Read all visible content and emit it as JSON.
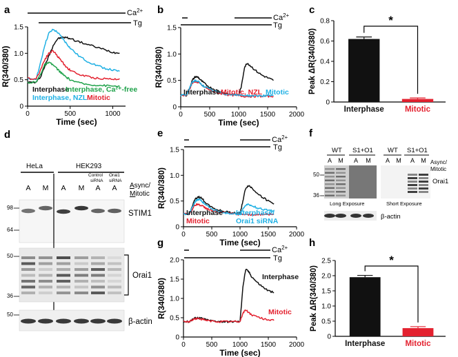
{
  "panel_labels": {
    "a": "a",
    "b": "b",
    "c": "c",
    "d": "d",
    "e": "e",
    "f": "f",
    "g": "g",
    "h": "h"
  },
  "annotations": {
    "ca": "Ca",
    "ca_sup": "2+",
    "tg": "Tg",
    "star": "*"
  },
  "colors": {
    "black": "#111111",
    "cyan": "#1fb0e4",
    "red": "#e3212f",
    "green": "#1fa24a",
    "gray": "#7f7f7f"
  },
  "chart_data": [
    {
      "id": "a",
      "type": "line",
      "title": "",
      "xlabel": "Time (sec)",
      "ylabel": "R(340/380)",
      "xlim": [
        0,
        1150
      ],
      "ylim": [
        0,
        1.5
      ],
      "xticks": [
        0,
        500,
        1000
      ],
      "yticks": [
        0,
        0.5,
        1.0,
        1.5
      ],
      "ytick_labels": [
        "0",
        "0.5",
        "1.0",
        "1.5"
      ],
      "series": [
        {
          "name": "Interphase",
          "color": "black",
          "x": [
            0,
            100,
            150,
            200,
            250,
            300,
            350,
            400,
            450,
            500,
            600,
            700,
            800,
            900,
            1000,
            1080
          ],
          "y": [
            0.45,
            0.45,
            0.55,
            0.75,
            0.95,
            1.15,
            1.27,
            1.3,
            1.3,
            1.28,
            1.22,
            1.17,
            1.12,
            1.07,
            1.02,
            1.0
          ]
        },
        {
          "name": "Interphase, NZL",
          "color": "cyan",
          "x": [
            0,
            100,
            150,
            200,
            250,
            300,
            350,
            400,
            450,
            500,
            600,
            700,
            800,
            900,
            1000,
            1080
          ],
          "y": [
            0.5,
            0.52,
            0.8,
            1.15,
            1.38,
            1.45,
            1.4,
            1.3,
            1.2,
            1.1,
            0.95,
            0.85,
            0.78,
            0.72,
            0.68,
            0.66
          ]
        },
        {
          "name": "Mitotic",
          "color": "red",
          "x": [
            0,
            100,
            150,
            200,
            250,
            300,
            350,
            400,
            450,
            500,
            600,
            700,
            800,
            900,
            1000,
            1080
          ],
          "y": [
            0.52,
            0.52,
            0.68,
            0.88,
            1.0,
            1.05,
            0.95,
            0.85,
            0.75,
            0.68,
            0.6,
            0.56,
            0.53,
            0.52,
            0.51,
            0.52
          ]
        },
        {
          "name": "Interphase, Ca²⁺-free",
          "color": "green",
          "x": [
            0,
            100,
            150,
            200,
            250,
            300,
            350,
            400,
            450,
            500,
            600,
            700,
            800,
            900,
            1000,
            1080
          ],
          "y": [
            0.45,
            0.45,
            0.6,
            0.78,
            0.82,
            0.78,
            0.7,
            0.62,
            0.55,
            0.5,
            0.44,
            0.41,
            0.4,
            0.39,
            0.38,
            0.38
          ]
        }
      ],
      "legend": [
        "Interphase",
        "Interphase, NZL",
        "Interphase, Ca²⁺-free",
        "Mitotic"
      ]
    },
    {
      "id": "b",
      "type": "line",
      "title": "",
      "xlabel": "Time (sec)",
      "ylabel": "R(340/380)",
      "xlim": [
        0,
        2000
      ],
      "ylim": [
        0,
        1.5
      ],
      "xticks": [
        0,
        500,
        1000,
        1500,
        2000
      ],
      "yticks": [
        0,
        0.5,
        1.0,
        1.5
      ],
      "ytick_labels": [
        "0",
        "0.5",
        "1.0",
        "1.5"
      ],
      "series": [
        {
          "name": "Interphase",
          "color": "black",
          "x": [
            0,
            100,
            150,
            200,
            250,
            300,
            350,
            400,
            500,
            600,
            700,
            800,
            900,
            1000,
            1050,
            1100,
            1150,
            1200,
            1300,
            1400,
            1500,
            1600
          ],
          "y": [
            0.22,
            0.22,
            0.35,
            0.5,
            0.57,
            0.56,
            0.5,
            0.45,
            0.37,
            0.32,
            0.28,
            0.25,
            0.23,
            0.22,
            0.4,
            0.75,
            0.83,
            0.78,
            0.68,
            0.6,
            0.55,
            0.5
          ]
        },
        {
          "name": "Mitotic, NZL",
          "color": "red",
          "x": [
            0,
            100,
            150,
            200,
            250,
            300,
            350,
            400,
            500,
            600,
            700,
            800,
            900,
            1000,
            1100,
            1200,
            1300,
            1400,
            1500,
            1600
          ],
          "y": [
            0.22,
            0.22,
            0.33,
            0.45,
            0.48,
            0.46,
            0.42,
            0.38,
            0.32,
            0.28,
            0.25,
            0.23,
            0.22,
            0.21,
            0.2,
            0.2,
            0.2,
            0.2,
            0.2,
            0.2
          ]
        },
        {
          "name": "Mitotic",
          "color": "cyan",
          "x": [
            0,
            100,
            150,
            200,
            250,
            300,
            350,
            400,
            500,
            600,
            700,
            800,
            900,
            1000,
            1100,
            1200,
            1300,
            1400,
            1500,
            1600
          ],
          "y": [
            0.22,
            0.22,
            0.34,
            0.47,
            0.5,
            0.48,
            0.43,
            0.39,
            0.33,
            0.29,
            0.26,
            0.24,
            0.23,
            0.22,
            0.22,
            0.21,
            0.21,
            0.21,
            0.21,
            0.21
          ]
        }
      ],
      "legend": [
        "Interphase",
        "Mitotic, NZL",
        "Mitotic"
      ]
    },
    {
      "id": "c",
      "type": "bar",
      "title": "",
      "xlabel": "",
      "ylabel": "Peak ΔR(340/380)",
      "categories": [
        "Interphase",
        "Mitotic"
      ],
      "values": [
        0.62,
        0.03
      ],
      "errors": [
        0.02,
        0.01
      ],
      "colors": [
        "black",
        "red"
      ],
      "ylim": [
        0,
        0.8
      ],
      "yticks": [
        0,
        0.2,
        0.4,
        0.6,
        0.8
      ],
      "ytick_labels": [
        "0",
        "0.2",
        "0.4",
        "0.6",
        "0.8"
      ],
      "significance": "*"
    },
    {
      "id": "e",
      "type": "line",
      "title": "",
      "xlabel": "Time (sec)",
      "ylabel": "R(340/380)",
      "xlim": [
        0,
        2000
      ],
      "ylim": [
        0,
        1.5
      ],
      "xticks": [
        0,
        500,
        1000,
        1500,
        2000
      ],
      "yticks": [
        0,
        0.5,
        1.0,
        1.5
      ],
      "ytick_labels": [
        "0",
        "0.5",
        "1.0",
        "1.5"
      ],
      "series": [
        {
          "name": "Interphase",
          "color": "black",
          "x": [
            0,
            100,
            150,
            200,
            250,
            300,
            350,
            400,
            500,
            600,
            700,
            800,
            900,
            1000,
            1050,
            1100,
            1150,
            1200,
            1300,
            1400,
            1500,
            1600
          ],
          "y": [
            0.25,
            0.25,
            0.38,
            0.52,
            0.58,
            0.57,
            0.52,
            0.46,
            0.38,
            0.33,
            0.3,
            0.28,
            0.27,
            0.26,
            0.5,
            0.75,
            0.8,
            0.76,
            0.66,
            0.57,
            0.5,
            0.44
          ]
        },
        {
          "name": "Mitotic",
          "color": "red",
          "x": [
            0,
            100,
            150,
            200,
            250,
            300,
            350,
            400,
            500,
            600,
            700,
            800,
            900,
            1000,
            1100,
            1200,
            1300,
            1400,
            1500,
            1600
          ],
          "y": [
            0.25,
            0.25,
            0.33,
            0.42,
            0.44,
            0.42,
            0.39,
            0.36,
            0.32,
            0.29,
            0.27,
            0.26,
            0.25,
            0.24,
            0.24,
            0.24,
            0.24,
            0.24,
            0.24,
            0.24
          ]
        },
        {
          "name": "Interphase/ Orai1 siRNA",
          "color": "cyan",
          "x": [
            0,
            100,
            150,
            200,
            250,
            300,
            350,
            400,
            500,
            600,
            700,
            800,
            900,
            1000,
            1050,
            1100,
            1150,
            1200,
            1300,
            1400,
            1500,
            1600
          ],
          "y": [
            0.25,
            0.25,
            0.36,
            0.48,
            0.53,
            0.52,
            0.47,
            0.42,
            0.35,
            0.3,
            0.28,
            0.26,
            0.25,
            0.25,
            0.34,
            0.42,
            0.43,
            0.41,
            0.37,
            0.34,
            0.32,
            0.3
          ]
        }
      ],
      "legend": [
        "Interphase",
        "Mitotic",
        "Interphase/",
        "Orai1 siRNA"
      ]
    },
    {
      "id": "g",
      "type": "line",
      "title": "",
      "xlabel": "Time (sec)",
      "ylabel": "R(340/380)",
      "xlim": [
        0,
        2000
      ],
      "ylim": [
        0,
        2.0
      ],
      "xticks": [
        0,
        500,
        1000,
        1500,
        2000
      ],
      "yticks": [
        0,
        0.5,
        1.0,
        1.5,
        2.0
      ],
      "ytick_labels": [
        "0",
        "0.5",
        "1.0",
        "1.5",
        "2.0"
      ],
      "series": [
        {
          "name": "Interphase",
          "color": "black",
          "x": [
            0,
            100,
            150,
            200,
            250,
            300,
            350,
            400,
            500,
            600,
            700,
            800,
            900,
            1000,
            1050,
            1100,
            1150,
            1200,
            1300,
            1400,
            1500,
            1600
          ],
          "y": [
            0.4,
            0.4,
            0.45,
            0.49,
            0.5,
            0.49,
            0.47,
            0.45,
            0.42,
            0.41,
            0.4,
            0.4,
            0.4,
            0.4,
            1.3,
            1.75,
            1.7,
            1.58,
            1.42,
            1.3,
            1.2,
            1.15
          ]
        },
        {
          "name": "Mitotic",
          "color": "red",
          "x": [
            0,
            100,
            150,
            200,
            250,
            300,
            350,
            400,
            500,
            600,
            700,
            800,
            900,
            1000,
            1050,
            1100,
            1150,
            1200,
            1300,
            1400,
            1500,
            1600
          ],
          "y": [
            0.4,
            0.4,
            0.44,
            0.47,
            0.48,
            0.47,
            0.45,
            0.43,
            0.41,
            0.4,
            0.4,
            0.4,
            0.4,
            0.4,
            0.62,
            0.7,
            0.64,
            0.58,
            0.52,
            0.48,
            0.45,
            0.43
          ]
        }
      ],
      "legend": [
        "Interphase",
        "Mitotic"
      ]
    },
    {
      "id": "h",
      "type": "bar",
      "title": "",
      "xlabel": "",
      "ylabel": "Peak ΔR(340/380)",
      "categories": [
        "Interphase",
        "Mitotic"
      ],
      "values": [
        1.95,
        0.27
      ],
      "errors": [
        0.06,
        0.05
      ],
      "colors": [
        "black",
        "red"
      ],
      "ylim": [
        0,
        2.5
      ],
      "yticks": [
        0,
        0.5,
        1.0,
        1.5,
        2.0,
        2.5
      ],
      "ytick_labels": [
        "0",
        "0.5",
        "1.0",
        "1.5",
        "2.0",
        "2.5"
      ],
      "significance": "*"
    }
  ],
  "blot_d": {
    "groups": {
      "hela": "HeLa",
      "hek": "HEK293"
    },
    "lanes": [
      "A",
      "M",
      "A",
      "M",
      "A",
      "A"
    ],
    "sublabels": {
      "control": "Control",
      "sirna": "siRNA",
      "orai1": "Orai1",
      "sirna2": "siRNA"
    },
    "side_label_line1_pre": "A",
    "side_label_line1_post": "sync/",
    "side_label_line2_pre": "M",
    "side_label_line2_post": "itotic",
    "markers": {
      "m98": "98",
      "m64": "64",
      "m50": "50",
      "m36": "36",
      "m50b": "50"
    },
    "bands": {
      "stim1": "STIM1",
      "orai1": "Orai1",
      "actin": "β-actin"
    },
    "stim1_intensity": [
      0.55,
      0.6,
      0.75,
      0.78,
      0.6,
      0.62
    ],
    "orai1_intensity": [
      0.85,
      0.55,
      0.95,
      0.65,
      0.85,
      0.3
    ]
  },
  "blot_f": {
    "wt": "WT",
    "s1o1": "S1+O1",
    "lanes": [
      "A",
      "M",
      "A",
      "M"
    ],
    "side": "Async/",
    "side2": "Mitotic",
    "m50": "50",
    "m36": "36",
    "orai1": "Orai1",
    "long": "Long Exposure",
    "short": "Short Exposure",
    "actin": "β-actin"
  }
}
